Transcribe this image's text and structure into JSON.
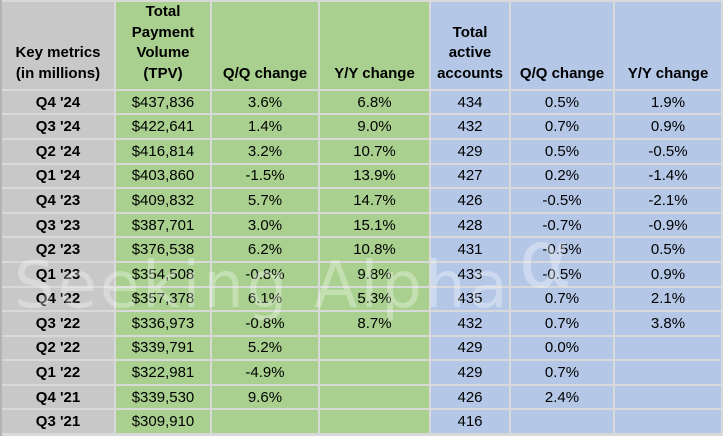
{
  "colors": {
    "label_gray": "#c8c8c8",
    "tpv_green": "#a9d08e",
    "accounts_blue": "#b4c7e7",
    "gridline": "#d9d9d9"
  },
  "watermark": {
    "text": "Seeking Alpha",
    "alpha_symbol": "α"
  },
  "chart_data": {
    "type": "table",
    "columns": [
      {
        "key": "key-metrics-label",
        "header": "Key metrics\n(in millions)",
        "group": "labels"
      },
      {
        "key": "tpv",
        "header": "Total\nPayment\nVolume\n(TPV)",
        "group": "tpv"
      },
      {
        "key": "tpv-qq-change",
        "header": "Q/Q change",
        "group": "tpv"
      },
      {
        "key": "tpv-yy-change",
        "header": "Y/Y change",
        "group": "tpv"
      },
      {
        "key": "active-accounts",
        "header": "Total\nactive\naccounts",
        "group": "accounts"
      },
      {
        "key": "accounts-qq-change",
        "header": "Q/Q change",
        "group": "accounts"
      },
      {
        "key": "accounts-yy-change",
        "header": "Y/Y change",
        "group": "accounts"
      }
    ],
    "rows": [
      [
        "Q4 '24",
        "$437,836",
        "3.6%",
        "6.8%",
        "434",
        "0.5%",
        "1.9%"
      ],
      [
        "Q3 '24",
        "$422,641",
        "1.4%",
        "9.0%",
        "432",
        "0.7%",
        "0.9%"
      ],
      [
        "Q2 '24",
        "$416,814",
        "3.2%",
        "10.7%",
        "429",
        "0.5%",
        "-0.5%"
      ],
      [
        "Q1 '24",
        "$403,860",
        "-1.5%",
        "13.9%",
        "427",
        "0.2%",
        "-1.4%"
      ],
      [
        "Q4 '23",
        "$409,832",
        "5.7%",
        "14.7%",
        "426",
        "-0.5%",
        "-2.1%"
      ],
      [
        "Q3 '23",
        "$387,701",
        "3.0%",
        "15.1%",
        "428",
        "-0.7%",
        "-0.9%"
      ],
      [
        "Q2 '23",
        "$376,538",
        "6.2%",
        "10.8%",
        "431",
        "-0.5%",
        "0.5%"
      ],
      [
        "Q1 '23",
        "$354,508",
        "-0.8%",
        "9.8%",
        "433",
        "-0.5%",
        "0.9%"
      ],
      [
        "Q4 '22",
        "$357,378",
        "6.1%",
        "5.3%",
        "435",
        "0.7%",
        "2.1%"
      ],
      [
        "Q3 '22",
        "$336,973",
        "-0.8%",
        "8.7%",
        "432",
        "0.7%",
        "3.8%"
      ],
      [
        "Q2 '22",
        "$339,791",
        "5.2%",
        "",
        "429",
        "0.0%",
        ""
      ],
      [
        "Q1 '22",
        "$322,981",
        "-4.9%",
        "",
        "429",
        "0.7%",
        ""
      ],
      [
        "Q4 '21",
        "$339,530",
        "9.6%",
        "",
        "426",
        "2.4%",
        ""
      ],
      [
        "Q3 '21",
        "$309,910",
        "",
        "",
        "416",
        "",
        ""
      ]
    ]
  }
}
